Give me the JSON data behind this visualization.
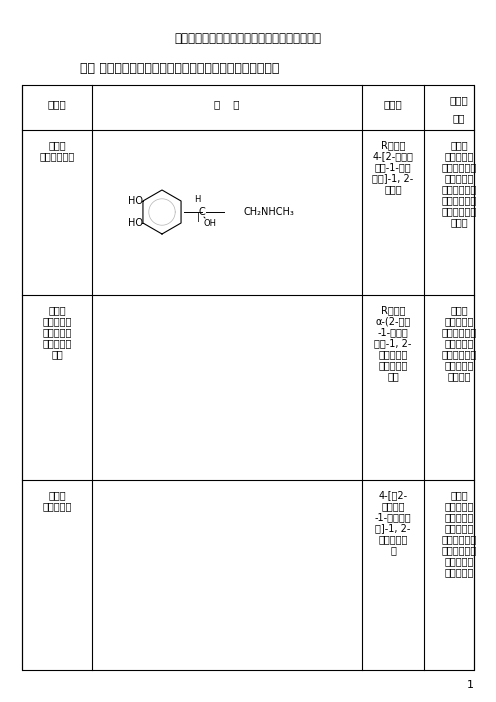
{
  "title": "药物化学（拟肾上腺素药）重、难点提示和辅导",
  "section_title": "一、 拟肾上腺素药典型代表药的结构、化学名、性质及应用",
  "col_headers": [
    "药品名",
    "结    构",
    "化学名",
    "性质及\n应用"
  ],
  "rows": [
    {
      "drug_name": "肾上腺\n素（副肾碱）",
      "chem_name": "R（－）\n4-[2-（甲胺\n基）-1-羟基\n乙基]-1, 2-\n苯二酚",
      "properties": "白色或\n类白色结晶\n性粉末。化学\n性质很不稳\n定，极易自动\n氧化，应避光\n保存。抗休克\n及哮喘",
      "bold_properties": "抗休克\n及哮喘"
    },
    {
      "drug_name": "重酒石\n酸去甲肾上\n腺素（酒石\n酸正肾上腺\n素）",
      "chem_name": "R（－）\nα-(2-氨基\n-1-羟基乙\n基）-1, 2-\n苯二酚重酒\n石酸盐一水\n合物",
      "properties": "白色或\n类白色结晶\n性粉末。临床\n上用于治疗\n各种体克，也\n可治疗胃粘\n膜出血。",
      "bold_properties": "治疗\n各种体克，也\n可治疗胃粘\n膜出血。"
    },
    {
      "drug_name": "盐酸异\n丙肾上腺素",
      "chem_name": "4-[（2-\n异丙胺基\n-1-羟基）乙\n基]-1, 2-\n苯二酚盐酸\n盐",
      "properties": "白色或\n类白色结晶\n性粉末。临\n床用于支气\n管哮喘、过敏\n性哮喘、心搏\n骤停及中毒\n性体克等。",
      "bold_properties": "临\n床用于支气\n管哮喘、过敏\n性哮喘、心搏\n骤停及中毒\n性体克等。"
    }
  ],
  "background_color": "#ffffff",
  "border_color": "#000000",
  "page_number": "1"
}
